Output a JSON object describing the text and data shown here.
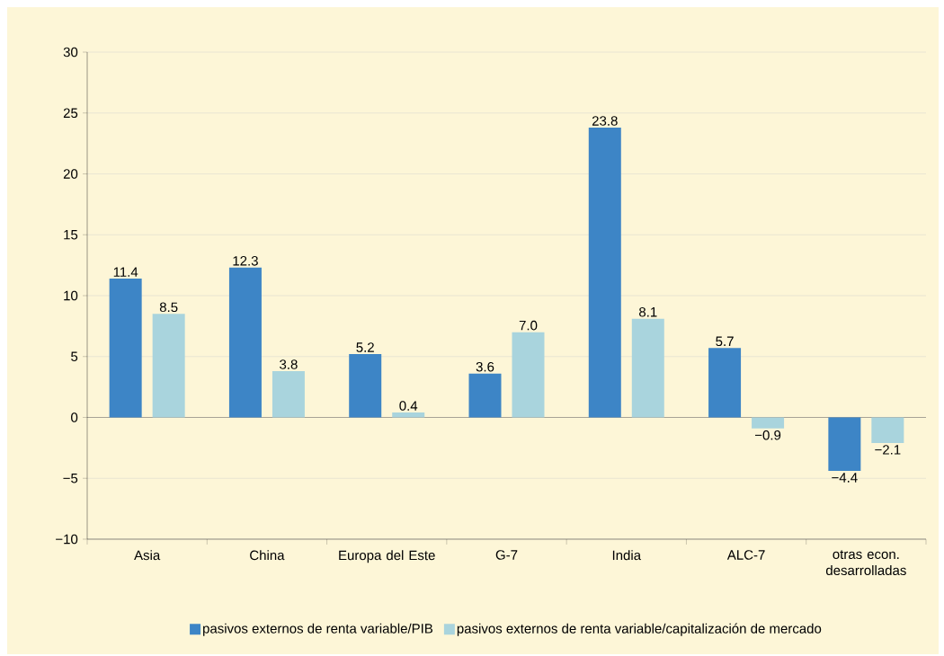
{
  "chart_data": {
    "type": "bar",
    "categories": [
      "Asia",
      "China",
      "Europa del Este",
      "G-7",
      "India",
      "ALC-7",
      "otras econ. desarrolladas"
    ],
    "series": [
      {
        "name": "pasivos externos de renta variable/PIB",
        "color": "#3d85c6",
        "values": [
          11.4,
          12.3,
          5.2,
          3.6,
          23.8,
          5.7,
          -4.4
        ],
        "value_labels": [
          "11.4",
          "12.3",
          "5.2",
          "3.6",
          "23.8",
          "5.7",
          "−4.4"
        ]
      },
      {
        "name": "pasivos externos de renta variable/capitalización de mercado",
        "color": "#a9d4dd",
        "values": [
          8.5,
          3.8,
          0.4,
          7.0,
          8.1,
          -0.9,
          -2.1
        ],
        "value_labels": [
          "8.5",
          "3.8",
          "0.4",
          "7.0",
          "8.1",
          "−0.9",
          "−2.1"
        ]
      }
    ],
    "ylim": [
      -10,
      30
    ],
    "yticks": [
      {
        "value": -10,
        "label": "−10"
      },
      {
        "value": -5,
        "label": "−5"
      },
      0,
      5,
      10,
      15,
      20,
      25,
      30
    ],
    "ref_lines": [
      {
        "axis": "y",
        "value": 0,
        "color": "#000000"
      }
    ],
    "grid": "y",
    "legend": "bottom"
  }
}
